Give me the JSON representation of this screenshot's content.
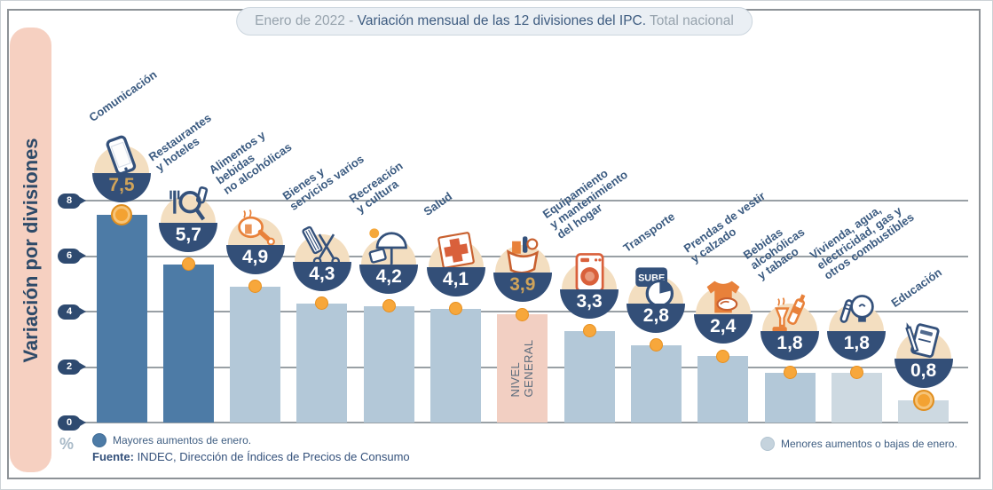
{
  "title": {
    "prefix": "Enero de 2022 - ",
    "main": "Variación mensual de las 12 divisiones del IPC.",
    "suffix": " Total nacional"
  },
  "side_panel": {
    "label": "Variación por divisiones"
  },
  "axis": {
    "ticks": [
      "8",
      "6",
      "4",
      "2",
      "0"
    ],
    "unit": "%"
  },
  "legend": {
    "high": "Mayores aumentos de enero.",
    "low": "Menores aumentos o bajas de enero."
  },
  "source": {
    "bold": "Fuente:",
    "text": " INDEC, Dirección de Índices de Precios de Consumo"
  },
  "colors": {
    "bar_high": "#4d7ba6",
    "bar_low": "#b3c8d8",
    "bar_lowest": "#cdd9e1",
    "bar_general": "#f2cfc2",
    "bowl": "#334f78",
    "accent_orange": "#f7a73b",
    "gold_value": "#cfa35a",
    "pink_panel": "#f6d0c1"
  },
  "chart_data": {
    "type": "bar",
    "title": "Enero de 2022 - Variación mensual de las 12 divisiones del IPC. Total nacional",
    "ylabel": "Variación por divisiones",
    "unit": "%",
    "ylim": [
      0,
      8
    ],
    "yticks": [
      0,
      2,
      4,
      6,
      8
    ],
    "grid": true,
    "legend_entries": [
      "Mayores aumentos de enero.",
      "Menores aumentos o bajas de enero."
    ],
    "categories": [
      "Comunicación",
      "Restaurantes y hoteles",
      "Alimentos y bebidas no alcohólicas",
      "Bienes y servicios varios",
      "Recreación y cultura",
      "Salud",
      "NIVEL GENERAL",
      "Equipamiento y mantenimiento del hogar",
      "Transporte",
      "Prendas de vestir y calzado",
      "Bebidas alcohólicas y tabaco",
      "Vivienda, agua, electricidad, gas y otros combustibles",
      "Educación"
    ],
    "values": [
      7.5,
      5.7,
      4.9,
      4.3,
      4.2,
      4.1,
      3.9,
      3.3,
      2.8,
      2.4,
      1.8,
      1.8,
      0.8
    ]
  },
  "bars": [
    {
      "name": "comunicacion",
      "label_lines": [
        "Comunicación"
      ],
      "value": "7,5",
      "value_num": 7.5,
      "group": "high",
      "icon": "phone-icon",
      "value_color": "gold",
      "marker": "coin"
    },
    {
      "name": "restaurantes-y-hoteles",
      "label_lines": [
        "Restaurantes",
        "y hoteles"
      ],
      "value": "5,7",
      "value_num": 5.7,
      "group": "high",
      "icon": "restaurant-icon",
      "marker": "dot"
    },
    {
      "name": "alimentos-y-bebidas",
      "label_lines": [
        "Alimentos y",
        "bebidas",
        "no alcohólicas"
      ],
      "value": "4,9",
      "value_num": 4.9,
      "group": "low",
      "icon": "food-icon",
      "marker": "dot"
    },
    {
      "name": "bienes-y-servicios",
      "label_lines": [
        "Bienes y",
        "servicios varios"
      ],
      "value": "4,3",
      "value_num": 4.3,
      "group": "low",
      "icon": "grooming-icon",
      "marker": "dot"
    },
    {
      "name": "recreacion-y-cultura",
      "label_lines": [
        "Recreación",
        "y cultura"
      ],
      "value": "4,2",
      "value_num": 4.2,
      "group": "low",
      "icon": "umbrella-icon",
      "marker": "dot"
    },
    {
      "name": "salud",
      "label_lines": [
        "Salud"
      ],
      "value": "4,1",
      "value_num": 4.1,
      "group": "low",
      "icon": "health-cross-icon",
      "marker": "dot"
    },
    {
      "name": "nivel-general",
      "label_lines": [],
      "bar_text": "NIVEL\nGENERAL",
      "value": "3,9",
      "value_num": 3.9,
      "group": "general",
      "icon": "basket-icon",
      "value_color": "gold",
      "marker": "dot"
    },
    {
      "name": "equipamiento-hogar",
      "label_lines": [
        "Equipamiento",
        "y mantenimiento",
        "del hogar"
      ],
      "value": "3,3",
      "value_num": 3.3,
      "group": "low",
      "icon": "washing-machine-icon",
      "marker": "dot"
    },
    {
      "name": "transporte",
      "label_lines": [
        "Transporte"
      ],
      "value": "2,8",
      "value_num": 2.8,
      "group": "low",
      "icon": "sube-card-icon",
      "icon_text": "SUBE",
      "marker": "dot"
    },
    {
      "name": "prendas-de-vestir",
      "label_lines": [
        "Prendas de vestir",
        "y calzado"
      ],
      "value": "2,4",
      "value_num": 2.4,
      "group": "low",
      "icon": "clothing-icon",
      "marker": "dot"
    },
    {
      "name": "bebidas-alcoholicas",
      "label_lines": [
        "Bebidas",
        "alcohólicas",
        "y tabaco"
      ],
      "value": "1,8",
      "value_num": 1.8,
      "group": "low",
      "icon": "drinks-icon",
      "marker": "dot"
    },
    {
      "name": "vivienda-agua-electricidad",
      "label_lines": [
        "Vivienda, agua,",
        "electricidad, gas y",
        "otros combustibles"
      ],
      "value": "1,8",
      "value_num": 1.8,
      "group": "lowest",
      "icon": "bulb-icon",
      "marker": "dot"
    },
    {
      "name": "educacion",
      "label_lines": [
        "Educación"
      ],
      "value": "0,8",
      "value_num": 0.8,
      "group": "lowest",
      "icon": "book-icon",
      "marker": "coin"
    }
  ]
}
